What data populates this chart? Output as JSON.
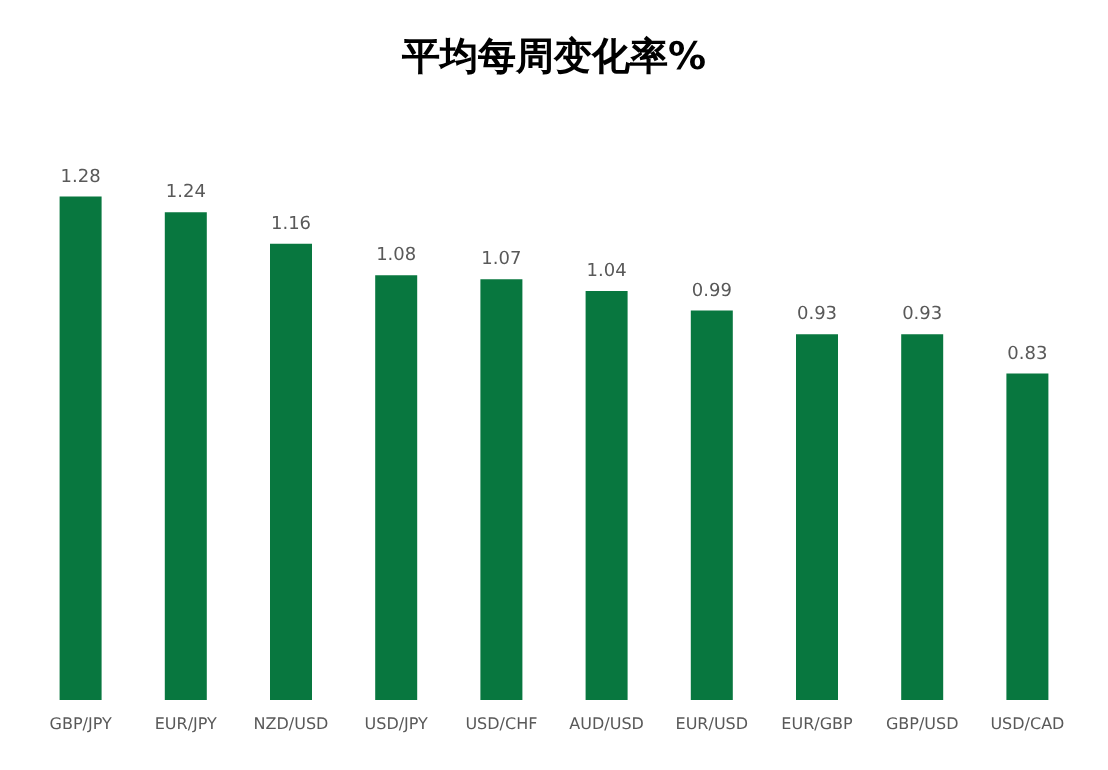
{
  "chart_data": {
    "type": "bar",
    "title": "平均每周变化率%",
    "categories": [
      "GBP/JPY",
      "EUR/JPY",
      "NZD/USD",
      "USD/JPY",
      "USD/CHF",
      "AUD/USD",
      "EUR/USD",
      "EUR/GBP",
      "GBP/USD",
      "USD/CAD"
    ],
    "values": [
      1.28,
      1.24,
      1.16,
      1.08,
      1.07,
      1.04,
      0.99,
      0.93,
      0.93,
      0.83
    ],
    "color": "#08773f",
    "data_labels": true,
    "tick_labels": "x"
  }
}
